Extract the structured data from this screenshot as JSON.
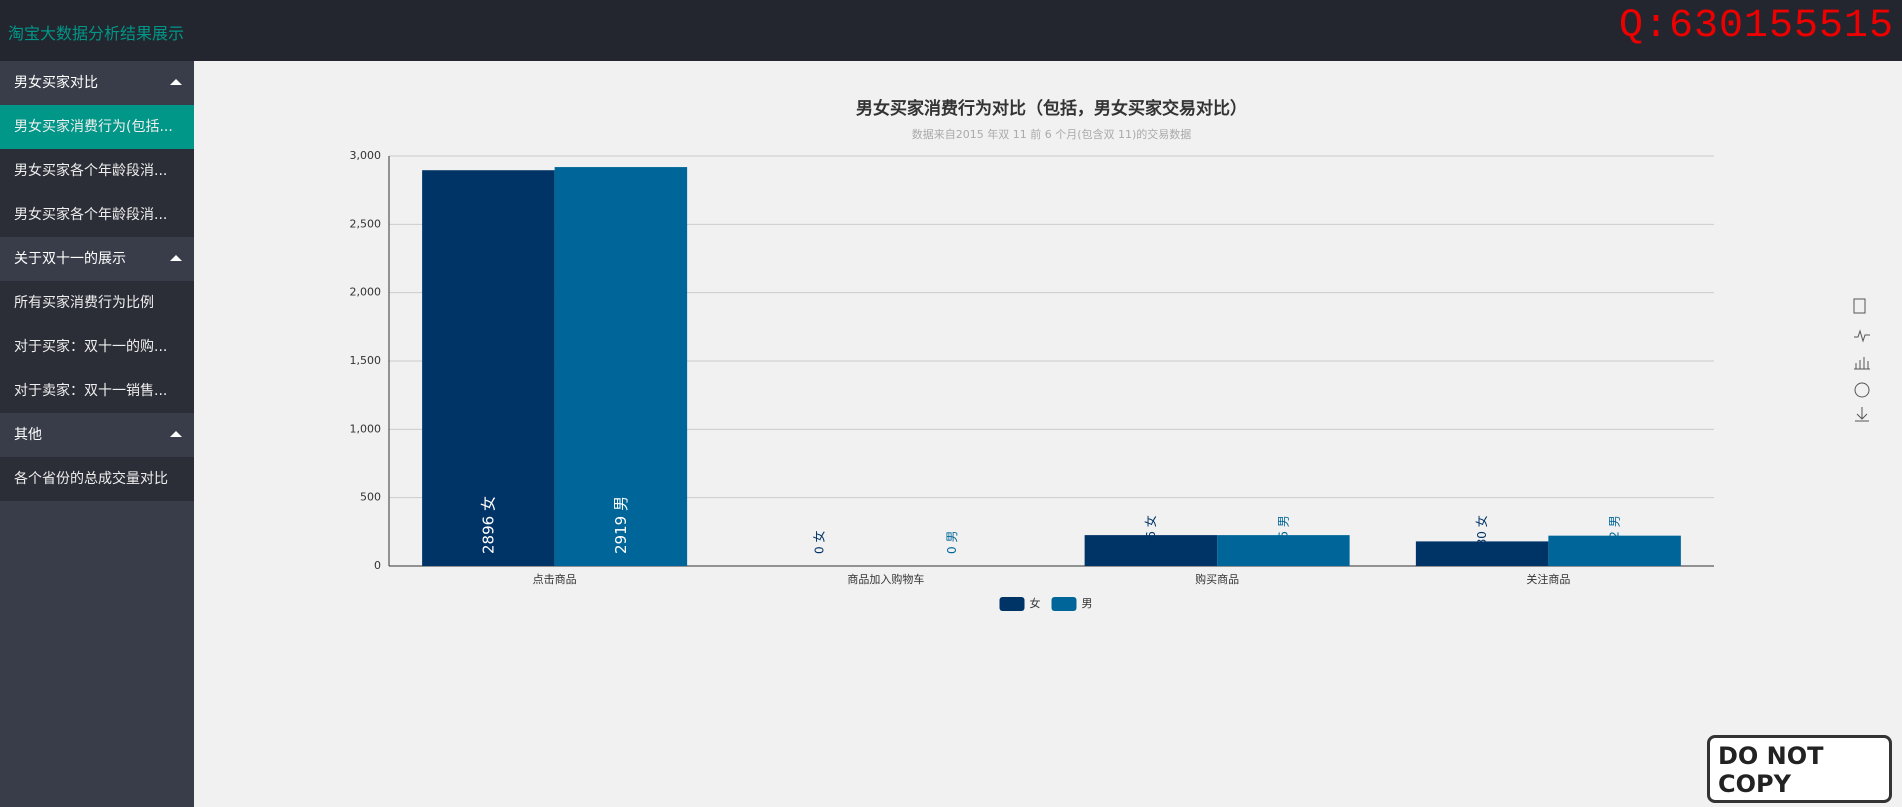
{
  "header": {
    "title": "淘宝大数据分析结果展示",
    "contact": "Q:630155515"
  },
  "sidebar": {
    "groups": [
      {
        "title": "男女买家对比",
        "items": [
          "男女买家消费行为(包括...",
          "男女买家各个年龄段消...",
          "男女买家各个年龄段消..."
        ]
      },
      {
        "title": "关于双十一的展示",
        "items": [
          "所有买家消费行为比例",
          "对于买家：双十一的购...",
          "对于卖家：双十一销售..."
        ]
      },
      {
        "title": "其他",
        "items": [
          "各个省份的总成交量对比"
        ]
      }
    ]
  },
  "watermark": "DO NOT COPY",
  "chart_data": {
    "type": "bar",
    "title": "男女买家消费行为对比（包括，男女买家交易对比）",
    "subtitle": "数据来自2015 年双 11 前 6 个月(包含双 11)的交易数据",
    "categories": [
      "点击商品",
      "商品加入购物车",
      "购买商品",
      "关注商品"
    ],
    "series": [
      {
        "name": "女",
        "color": "#003366",
        "values": [
          2896,
          0,
          226,
          180
        ]
      },
      {
        "name": "男",
        "color": "#006699",
        "values": [
          2919,
          0,
          226,
          222
        ]
      }
    ],
    "ylim": [
      0,
      3000
    ],
    "yticks": [
      0,
      500,
      {
        "value": 1000,
        "label": "1,000"
      },
      {
        "value": 1500,
        "label": "1,500"
      },
      {
        "value": 2000,
        "label": "2,000"
      },
      {
        "value": 2500,
        "label": "2,500"
      },
      {
        "value": 3000,
        "label": "3,000"
      }
    ],
    "grid": true,
    "legend": "bottom"
  }
}
